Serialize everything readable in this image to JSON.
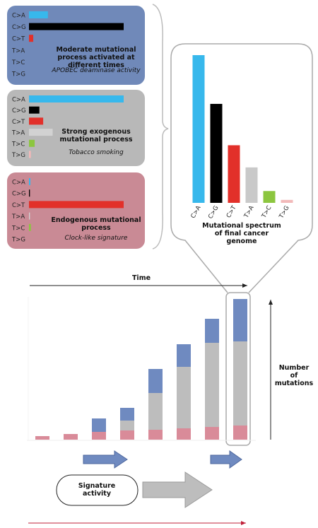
{
  "chart_data": [
    {
      "type": "hbar",
      "title": "Moderate mutational process activated at different times",
      "subtitle": "APOBEC deaminase activity",
      "categories": [
        "C>A",
        "C>G",
        "C>T",
        "T>A",
        "T>C",
        "T>G"
      ],
      "values": [
        20,
        100,
        4.5,
        0,
        0,
        0
      ],
      "colors": [
        "#37b8ec",
        "#000000",
        "#e2302a",
        "#c9c9c9",
        "#8cc63f",
        "#f2b9b9"
      ],
      "xlim": [
        0,
        100
      ]
    },
    {
      "type": "hbar",
      "title": "Strong exogenous mutational process",
      "subtitle": "Tobacco smoking",
      "categories": [
        "C>A",
        "C>G",
        "C>T",
        "T>A",
        "T>C",
        "T>G"
      ],
      "values": [
        100,
        11,
        15,
        25,
        6,
        2
      ],
      "colors": [
        "#37b8ec",
        "#000000",
        "#e2302a",
        "#d2d2d2",
        "#8cc63f",
        "#f2b9b9"
      ],
      "xlim": [
        0,
        100
      ]
    },
    {
      "type": "hbar",
      "title": "Endogenous mutational process",
      "subtitle": "Clock-like signature",
      "categories": [
        "C>A",
        "C>G",
        "C>T",
        "T>A",
        "T>C",
        "T>G"
      ],
      "values": [
        1.5,
        1,
        100,
        1,
        2,
        0
      ],
      "colors": [
        "#37b8ec",
        "#000000",
        "#e2302a",
        "#d2d2d2",
        "#8cc63f",
        "#f2b9b9"
      ],
      "xlim": [
        0,
        100
      ]
    },
    {
      "type": "bar",
      "title": "Mutational spectrum of final cancer genome",
      "categories": [
        "C>A",
        "C>G",
        "C>T",
        "T>A",
        "T>C",
        "T>G"
      ],
      "values": [
        100,
        67,
        39,
        24,
        8,
        2
      ],
      "colors": [
        "#37b8ec",
        "#000000",
        "#e2302a",
        "#c9c9c9",
        "#8cc63f",
        "#f2b9b9"
      ],
      "ylim": [
        0,
        100
      ]
    },
    {
      "type": "stacked",
      "x_label": "Time",
      "y_label": "Number of mutations",
      "annotation": "Signature activity",
      "series": [
        {
          "color": "#d98b99",
          "values": [
            5,
            8,
            11,
            13,
            14,
            16,
            18,
            20
          ]
        },
        {
          "color": "#bdbdbd",
          "values": [
            0,
            0,
            0,
            14,
            52,
            87,
            119,
            119
          ]
        },
        {
          "color": "#6f8ac0",
          "values": [
            0,
            0,
            19,
            18,
            34,
            32,
            34,
            60
          ]
        }
      ]
    }
  ]
}
